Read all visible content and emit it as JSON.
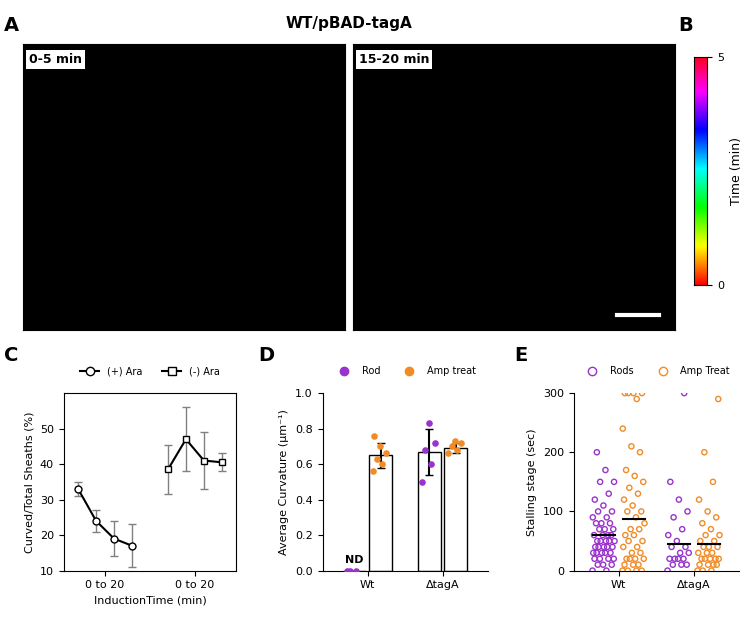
{
  "chart_data": [
    {
      "panel": "A",
      "type": "image",
      "title": "WT/pBAD-tagA",
      "frames": [
        "0-5 min",
        "15-20 min"
      ]
    },
    {
      "panel": "B",
      "type": "colorbar",
      "label": "Time (min)",
      "ylim": [
        0,
        5
      ],
      "yticks": [
        0,
        5
      ]
    },
    {
      "panel": "C",
      "type": "line",
      "ylabel": "Curved/Total Sheaths (%)",
      "xlabel": "InductionTime (min)",
      "xlim": [
        -0.8,
        8.8
      ],
      "xticks": [
        {
          "value": 1.5,
          "label": "0 to 20"
        },
        {
          "value": 6.5,
          "label": "0 to 20"
        }
      ],
      "ylim": [
        10,
        60
      ],
      "yticks": [
        10,
        20,
        30,
        40,
        50
      ],
      "legend": "upper center",
      "series": [
        {
          "name": "(+) Ara",
          "color": "#000000",
          "marker": "o",
          "line_style": "solid",
          "x": [
            0,
            1,
            2,
            3
          ],
          "values": [
            33,
            24,
            19,
            17
          ],
          "errors": [
            2,
            3,
            5,
            6
          ]
        },
        {
          "name": "(-) Ara",
          "color": "#000000",
          "marker": "s",
          "line_style": "solid",
          "x": [
            5,
            6,
            7,
            8
          ],
          "values": [
            38.5,
            47,
            41,
            40.5
          ],
          "errors": [
            7,
            9,
            8,
            2.5
          ]
        }
      ]
    },
    {
      "panel": "D",
      "type": "bar",
      "ylabel": "Average Curvature (µm⁻¹)",
      "categories": [
        "Wt",
        "ΔtagA"
      ],
      "ylim": [
        0.0,
        1.0
      ],
      "yticks": [
        0.0,
        0.2,
        0.4,
        0.6,
        0.8,
        1.0
      ],
      "legend": "upper center",
      "annotations": [
        {
          "text": "ND",
          "category": "Wt",
          "series": "Rod"
        }
      ],
      "series": [
        {
          "name": "Rod",
          "color": "#9933cc",
          "values": [
            0,
            0.67
          ],
          "errors": [
            0,
            0.13
          ],
          "points": [
            [
              0,
              0,
              0
            ],
            [
              0.5,
              0.6,
              0.68,
              0.72,
              0.83
            ]
          ]
        },
        {
          "name": "Amp treat",
          "color": "#f08c28",
          "values": [
            0.65,
            0.69
          ],
          "errors": [
            0.07,
            0.03
          ],
          "points": [
            [
              0.56,
              0.6,
              0.63,
              0.66,
              0.7,
              0.76
            ],
            [
              0.66,
              0.68,
              0.7,
              0.72,
              0.73
            ]
          ]
        }
      ]
    },
    {
      "panel": "E",
      "type": "scatter",
      "ylabel": "Stalling stage (sec)",
      "categories": [
        "Wt",
        "ΔtagA"
      ],
      "ylim": [
        0,
        300
      ],
      "yticks": [
        0,
        100,
        200,
        300
      ],
      "legend": "upper center",
      "series": [
        {
          "name": "Rods",
          "color": "#9933cc",
          "means": [
            60,
            45
          ],
          "points": [
            [
              0,
              0,
              10,
              10,
              10,
              20,
              20,
              20,
              20,
              30,
              30,
              30,
              30,
              30,
              40,
              40,
              40,
              40,
              40,
              50,
              50,
              50,
              50,
              50,
              60,
              60,
              60,
              60,
              70,
              70,
              70,
              80,
              80,
              80,
              90,
              90,
              100,
              100,
              110,
              120,
              130,
              150,
              150,
              170,
              200
            ],
            [
              0,
              10,
              10,
              10,
              20,
              20,
              20,
              20,
              30,
              30,
              40,
              40,
              50,
              60,
              70,
              90,
              100,
              120,
              150,
              300
            ]
          ]
        },
        {
          "name": "Amp Treat",
          "color": "#f08c28",
          "means": [
            87,
            45
          ],
          "points": [
            [
              0,
              0,
              0,
              0,
              10,
              10,
              10,
              20,
              20,
              20,
              20,
              30,
              30,
              40,
              40,
              50,
              50,
              60,
              60,
              70,
              70,
              80,
              90,
              100,
              100,
              110,
              120,
              130,
              140,
              150,
              160,
              170,
              200,
              210,
              240,
              290,
              300,
              300,
              300,
              300
            ],
            [
              0,
              0,
              0,
              10,
              10,
              10,
              10,
              20,
              20,
              20,
              20,
              20,
              30,
              30,
              30,
              40,
              40,
              40,
              50,
              50,
              60,
              60,
              70,
              80,
              90,
              100,
              120,
              150,
              200,
              290
            ]
          ]
        }
      ]
    }
  ]
}
